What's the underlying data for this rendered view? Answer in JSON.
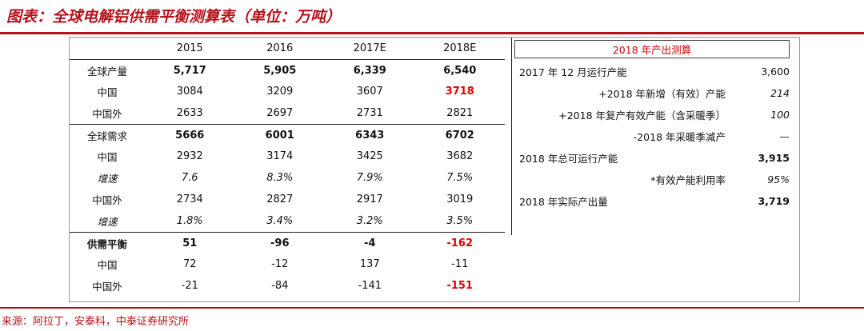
{
  "title": "图表：全球电解铝供需平衡测算表（单位：万吨）",
  "source": "来源：阿拉丁，安泰科，中泰证券研究所",
  "colors": {
    "brand": "#b5121b",
    "highlight": "#e00000"
  },
  "left": {
    "headers": [
      "2015",
      "2016",
      "2017E",
      "2018E"
    ],
    "rows": [
      {
        "label": "全球产量",
        "values": [
          "5,717",
          "5,905",
          "6,339",
          "6,540"
        ]
      },
      {
        "label": "中国",
        "values": [
          "3084",
          "3209",
          "3607",
          "3718"
        ]
      },
      {
        "label": "中国外",
        "values": [
          "2633",
          "2697",
          "2731",
          "2821"
        ]
      },
      {
        "label": "全球需求",
        "values": [
          "5666",
          "6001",
          "6343",
          "6702"
        ]
      },
      {
        "label": "中国",
        "values": [
          "2932",
          "3174",
          "3425",
          "3682"
        ]
      },
      {
        "label": "增速",
        "values": [
          "7.6",
          "8.3%",
          "7.9%",
          "7.5%"
        ]
      },
      {
        "label": "中国外",
        "values": [
          "2734",
          "2827",
          "2917",
          "3019"
        ]
      },
      {
        "label": "增速",
        "values": [
          "1.8%",
          "3.4%",
          "3.2%",
          "3.5%"
        ]
      },
      {
        "label": "供需平衡",
        "values": [
          "51",
          "-96",
          "-4",
          "-162"
        ]
      },
      {
        "label": "中国",
        "values": [
          "72",
          "-12",
          "137",
          "-11"
        ]
      },
      {
        "label": "中国外",
        "values": [
          "-21",
          "-84",
          "-141",
          "-151"
        ]
      }
    ]
  },
  "right": {
    "header": "2018 年产出测算",
    "rows": [
      {
        "label": "2017 年 12 月运行产能",
        "value": "3,600"
      },
      {
        "label": "+2018 年新增（有效）产能",
        "value": "214"
      },
      {
        "label": "+2018 年复产有效产能（含采暖季）",
        "value": "100"
      },
      {
        "label": "-2018 年采暖季减产",
        "value": "—"
      },
      {
        "label": "2018 年总可运行产能",
        "value": "3,915"
      },
      {
        "label": "*有效产能利用率",
        "value": "95%"
      },
      {
        "label": "2018 年实际产出量",
        "value": "3,719"
      }
    ]
  }
}
